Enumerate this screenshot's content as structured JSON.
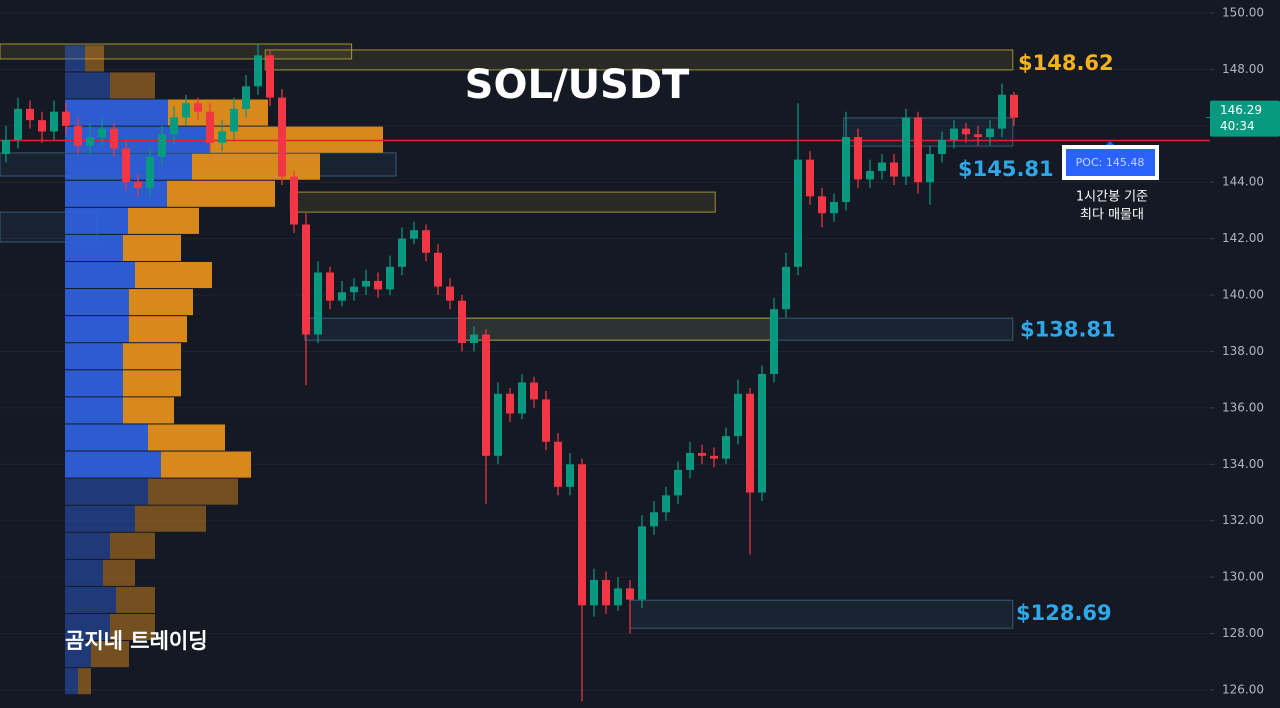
{
  "chart_data": {
    "type": "candlestick",
    "title": "SOL/USDT",
    "watermark": "곰지네 트레이딩",
    "note": [
      "1시간봉 기준",
      "최다 매물대"
    ],
    "ylim": [
      125.36,
      150.46
    ],
    "yticks": [
      {
        "value": 126,
        "label": "126.00"
      },
      {
        "value": 128,
        "label": "128.00"
      },
      {
        "value": 130,
        "label": "130.00"
      },
      {
        "value": 132,
        "label": "132.00"
      },
      {
        "value": 134,
        "label": "134.00"
      },
      {
        "value": 136,
        "label": "136.00"
      },
      {
        "value": 138,
        "label": "138.00"
      },
      {
        "value": 140,
        "label": "140.00"
      },
      {
        "value": 142,
        "label": "142.00"
      },
      {
        "value": 144,
        "label": "144.00"
      },
      {
        "value": 146,
        "label": "146.00"
      },
      {
        "value": 148,
        "label": "148.00"
      },
      {
        "value": 150,
        "label": "150.00"
      }
    ],
    "grid": true,
    "up_color": "#089981",
    "down_color": "#f23645",
    "open": [
      145.0,
      145.5,
      146.6,
      146.2,
      145.8,
      146.5,
      146.0,
      145.3,
      145.6,
      145.9,
      145.2,
      144.0,
      143.8,
      144.9,
      145.7,
      146.3,
      146.8,
      146.5,
      145.4,
      145.8,
      146.6,
      147.4,
      148.5,
      147.0,
      144.2,
      142.5,
      138.6,
      140.8,
      139.8,
      140.1,
      140.3,
      140.5,
      140.2,
      141.0,
      142.0,
      142.3,
      141.5,
      140.3,
      139.8,
      138.3,
      138.6,
      134.3,
      136.5,
      135.8,
      136.9,
      136.3,
      134.8,
      133.2,
      134.0,
      129.0,
      129.9,
      129.0,
      129.6,
      129.2,
      131.8,
      132.3,
      132.9,
      133.8,
      134.4,
      134.3,
      134.2,
      135.0,
      136.5,
      133.0,
      137.2,
      139.5,
      141.0,
      144.8,
      143.5,
      142.9,
      143.3,
      145.6,
      144.1,
      144.4,
      144.7,
      144.2,
      146.3,
      144.0,
      145.0,
      145.5,
      145.9,
      145.7,
      145.6,
      145.9,
      147.1
    ],
    "high": [
      146.0,
      147.0,
      146.9,
      146.5,
      146.9,
      146.8,
      146.3,
      146.1,
      146.3,
      146.1,
      145.5,
      144.3,
      145.2,
      146.0,
      146.7,
      147.1,
      147.0,
      146.8,
      146.2,
      147.0,
      147.8,
      148.9,
      148.7,
      147.3,
      144.4,
      142.9,
      141.2,
      141.0,
      140.5,
      140.6,
      140.9,
      140.8,
      141.4,
      142.4,
      142.6,
      142.5,
      141.8,
      140.6,
      140.0,
      138.9,
      138.8,
      136.9,
      136.7,
      137.2,
      137.1,
      136.6,
      135.1,
      134.4,
      134.2,
      130.3,
      130.2,
      130.0,
      129.9,
      132.2,
      132.7,
      133.2,
      134.1,
      134.8,
      134.7,
      134.6,
      135.3,
      137.0,
      136.7,
      137.5,
      139.9,
      141.5,
      146.8,
      145.1,
      143.8,
      143.6,
      146.5,
      145.9,
      144.8,
      145.0,
      145.0,
      146.6,
      146.5,
      145.3,
      145.8,
      146.2,
      146.1,
      146.0,
      146.2,
      147.5,
      147.2
    ],
    "low": [
      144.7,
      145.2,
      145.9,
      145.4,
      145.5,
      145.7,
      145.0,
      145.0,
      145.3,
      144.9,
      143.7,
      143.5,
      143.5,
      144.6,
      145.4,
      146.0,
      146.2,
      145.1,
      145.1,
      145.5,
      146.3,
      147.1,
      146.7,
      143.9,
      142.2,
      136.8,
      138.3,
      139.5,
      139.6,
      139.8,
      140.0,
      139.9,
      140.0,
      140.7,
      141.8,
      141.2,
      140.0,
      139.5,
      138.0,
      138.0,
      132.6,
      134.0,
      135.5,
      135.6,
      136.0,
      134.5,
      132.9,
      132.9,
      125.6,
      128.6,
      128.7,
      128.8,
      128.0,
      128.9,
      131.5,
      132.0,
      132.6,
      133.5,
      134.0,
      133.9,
      134.0,
      134.7,
      130.8,
      132.7,
      136.9,
      139.2,
      140.7,
      143.2,
      142.4,
      142.6,
      143.0,
      143.8,
      143.8,
      144.1,
      143.9,
      143.9,
      143.6,
      143.2,
      144.7,
      145.2,
      145.4,
      145.3,
      145.3,
      145.6,
      146.0
    ],
    "close": [
      145.5,
      146.6,
      146.2,
      145.8,
      146.5,
      146.0,
      145.3,
      145.6,
      145.9,
      145.2,
      144.0,
      143.8,
      144.9,
      145.7,
      146.3,
      146.8,
      146.5,
      145.4,
      145.8,
      146.6,
      147.4,
      148.5,
      147.0,
      144.2,
      142.5,
      138.6,
      140.8,
      139.8,
      140.1,
      140.3,
      140.5,
      140.2,
      141.0,
      142.0,
      142.3,
      141.5,
      140.3,
      139.8,
      138.3,
      138.6,
      134.3,
      136.5,
      135.8,
      136.9,
      136.3,
      134.8,
      133.2,
      134.0,
      129.0,
      129.9,
      129.0,
      129.6,
      129.2,
      131.8,
      132.3,
      132.9,
      133.8,
      134.4,
      134.3,
      134.2,
      135.0,
      136.5,
      133.0,
      137.2,
      139.5,
      141.0,
      144.8,
      143.5,
      142.9,
      143.3,
      145.6,
      144.1,
      144.4,
      144.7,
      144.2,
      146.3,
      144.0,
      145.0,
      145.5,
      145.9,
      145.7,
      145.6,
      145.9,
      147.1,
      146.29
    ],
    "profile": {
      "bins": [
        148.87,
        147.91,
        146.95,
        145.99,
        145.03,
        144.07,
        143.11,
        142.15,
        141.19,
        140.23,
        139.27,
        138.31,
        137.35,
        136.39,
        135.43,
        134.47,
        133.51,
        132.55,
        131.59,
        130.63,
        129.67,
        128.71,
        127.75,
        126.79,
        125.83
      ],
      "buy": [
        20,
        45,
        103,
        145,
        127,
        102,
        63,
        58,
        70,
        64,
        64,
        58,
        58,
        58,
        83,
        96,
        83,
        70,
        45,
        38,
        51,
        45,
        26,
        13
      ],
      "sell": [
        19,
        45,
        100,
        173,
        128,
        108,
        71,
        58,
        77,
        64,
        58,
        58,
        58,
        51,
        77,
        90,
        90,
        71,
        45,
        32,
        39,
        45,
        38,
        13
      ],
      "buy_color": "#2f62e0",
      "sell_color": "#e8921c",
      "value_area": [
        133.51,
        146.95
      ]
    },
    "zones": [
      {
        "low": 148.37,
        "high": 148.9,
        "x": [
          -0.5,
          28.8
        ],
        "color": "#bfae3a"
      },
      {
        "low": 147.98,
        "high": 148.69,
        "x": [
          21.6,
          83.9
        ],
        "color": "#bfae3a"
      },
      {
        "low": 142.94,
        "high": 143.65,
        "x": [
          23.7,
          59.1
        ],
        "color": "#bfae3a"
      },
      {
        "low": 145.28,
        "high": 146.28,
        "x": [
          69.8,
          83.9
        ],
        "color": "#3d6a8c"
      },
      {
        "low": 138.4,
        "high": 139.18,
        "x": [
          24.9,
          83.9
        ],
        "color": "#3d6a8c"
      },
      {
        "low": 138.4,
        "high": 139.18,
        "x": [
          37.8,
          63.7
        ],
        "color": "#bfae3a"
      },
      {
        "low": 128.19,
        "high": 129.18,
        "x": [
          52,
          83.9
        ],
        "color": "#3d6a8c"
      },
      {
        "low": 141.88,
        "high": 142.94,
        "x": [
          -0.5,
          7.6
        ],
        "color": "#3d6a8c"
      },
      {
        "low": 144.22,
        "high": 145.04,
        "x": [
          -0.5,
          32.5
        ],
        "color": "#3d6a8c"
      }
    ],
    "levels": [
      {
        "label": "$148.62",
        "value": 148.62,
        "color": "#f5b21b"
      },
      {
        "label": "$145.81",
        "value": 145.81,
        "color": "#2ea8e8"
      },
      {
        "label": "$138.81",
        "value": 138.81,
        "color": "#2ea8e8"
      },
      {
        "label": "$128.69",
        "value": 128.69,
        "color": "#2ea8e8"
      }
    ],
    "poc": {
      "value": 145.48,
      "label": "POC: 145.48",
      "color": "#e0202a"
    },
    "last_price": 146.29,
    "countdown": "40:34"
  }
}
